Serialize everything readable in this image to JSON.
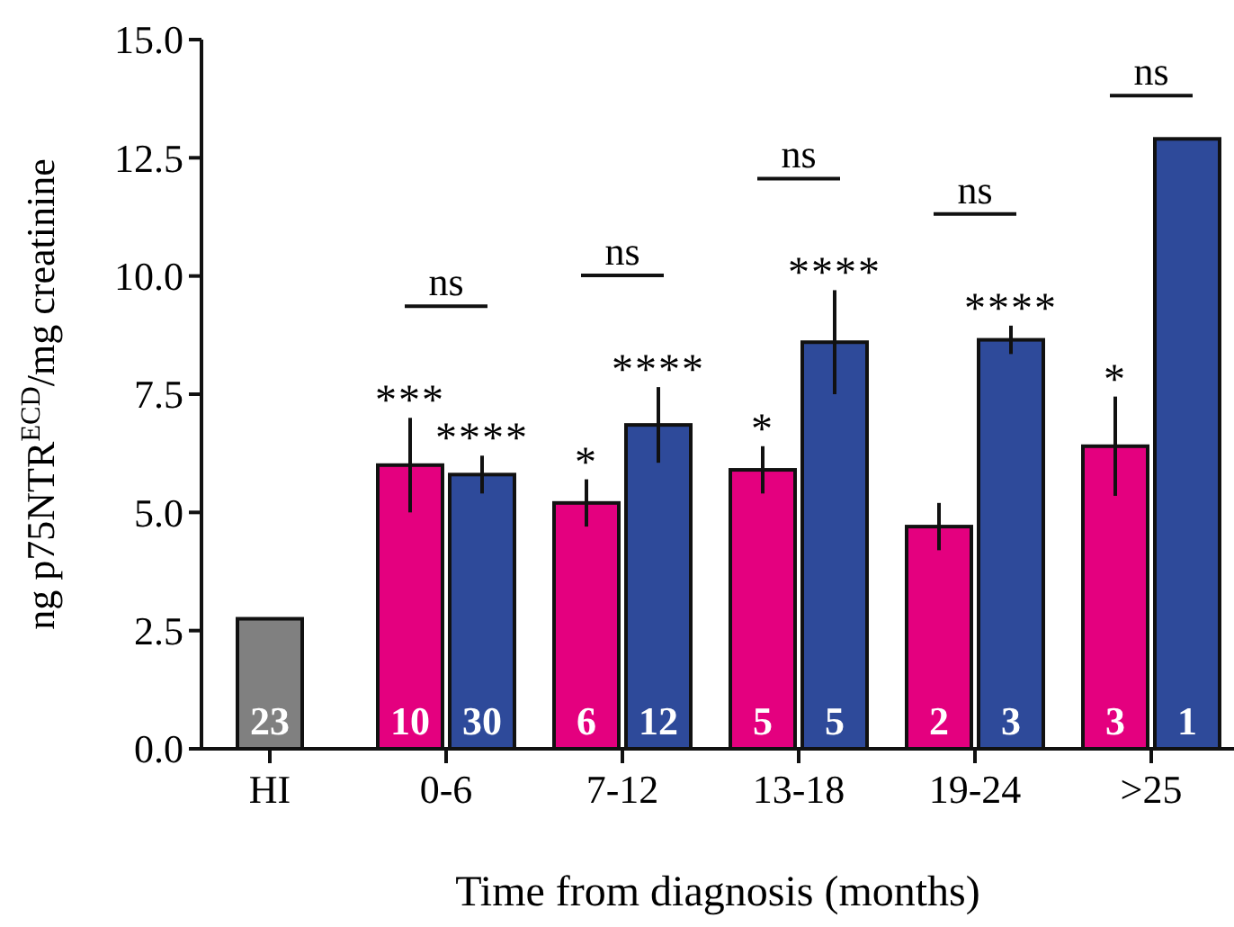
{
  "chart_data": {
    "type": "bar",
    "xlabel": "Time from diagnosis (months)",
    "ylabel": "ng p75NTR$^{ECD}$/mg creatinine",
    "categories": [
      "HI",
      "0-6",
      "7-12",
      "13-18",
      "19-24",
      ">25"
    ],
    "ylim": [
      0,
      15
    ],
    "yticks": [
      {
        "value": 0,
        "label": "0.0"
      },
      {
        "value": 2.5,
        "label": "2.5"
      },
      {
        "value": 5,
        "label": "5.0"
      },
      {
        "value": 7.5,
        "label": "7.5"
      },
      {
        "value": 10,
        "label": "10.0"
      },
      {
        "value": 12.5,
        "label": "12.5"
      },
      {
        "value": 15,
        "label": "15.0"
      }
    ],
    "grid": false,
    "series": [
      {
        "color": "#808080",
        "values": [
          2.75,
          null,
          null,
          null,
          null,
          null
        ]
      },
      {
        "color": "#e4007f",
        "values": [
          null,
          6.0,
          5.2,
          5.9,
          4.7,
          6.4
        ],
        "errors": [
          null,
          1.0,
          0.5,
          0.5,
          0.5,
          1.05
        ]
      },
      {
        "color": "#2e4a9a",
        "values": [
          null,
          5.8,
          6.85,
          8.6,
          8.65,
          12.9
        ],
        "errors": [
          null,
          0.4,
          0.8,
          1.1,
          0.3,
          null
        ]
      }
    ],
    "annotations": [
      "23",
      "10",
      "30",
      "6",
      "12",
      "5",
      "5",
      "2",
      "3",
      "3",
      "1",
      {
        "text": "***",
        "x": "0-6",
        "y": 6.0
      },
      {
        "text": "****",
        "x": "0-6",
        "y": 5.8
      },
      "ns",
      {
        "text": "*",
        "x": "7-12",
        "y": 5.2
      },
      {
        "text": "****",
        "x": "7-12",
        "y": 6.85
      },
      "ns",
      {
        "text": "*",
        "x": "13-18",
        "y": 5.9
      },
      {
        "text": "****",
        "x": "13-18",
        "y": 8.6
      },
      "ns",
      {
        "text": "****",
        "x": "19-24",
        "y": 8.65
      },
      "ns",
      {
        "text": "*",
        "x": ">25",
        "y": 6.4
      },
      "ns"
    ]
  }
}
